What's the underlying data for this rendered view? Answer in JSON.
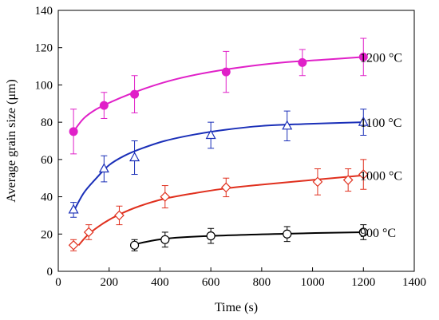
{
  "chart_data": {
    "type": "scatter",
    "xlabel": "Time (s)",
    "ylabel": "Average grain size (μm)",
    "xlim": [
      0,
      1400
    ],
    "ylim": [
      0,
      140
    ],
    "xticks": [
      0,
      200,
      400,
      600,
      800,
      1000,
      1200,
      1400
    ],
    "yticks": [
      0,
      20,
      40,
      60,
      80,
      100,
      120,
      140
    ],
    "grid": false,
    "legend": "none",
    "series": [
      {
        "name": "900 °C",
        "color": "#000000",
        "marker": "circle-open",
        "x": [
          300,
          420,
          600,
          900,
          1200
        ],
        "y": [
          14,
          17,
          19,
          20,
          21
        ],
        "err": [
          3,
          4,
          4,
          4,
          4
        ],
        "fit_x": [
          300,
          420,
          600,
          900,
          1200
        ],
        "fit_y": [
          14.5,
          17.5,
          19,
          20.2,
          21
        ]
      },
      {
        "name": "1000 °C",
        "color": "#e0301e",
        "marker": "diamond-open",
        "x": [
          60,
          120,
          240,
          420,
          660,
          1020,
          1140,
          1200
        ],
        "y": [
          14,
          21,
          30,
          40,
          45,
          48,
          49,
          52
        ],
        "err": [
          3,
          4,
          5,
          6,
          5,
          7,
          6,
          8
        ],
        "fit_x": [
          80,
          120,
          180,
          240,
          320,
          420,
          540,
          660,
          800,
          1000,
          1200
        ],
        "fit_y": [
          14,
          20,
          26,
          30.5,
          35,
          39,
          42,
          44.5,
          46.5,
          49,
          51.5
        ]
      },
      {
        "name": "1100 °C",
        "color": "#1a2fb8",
        "marker": "triangle-open",
        "x": [
          60,
          180,
          300,
          600,
          900,
          1200
        ],
        "y": [
          33,
          55,
          61,
          73,
          78,
          80
        ],
        "err": [
          4,
          7,
          9,
          7,
          8,
          7
        ],
        "fit_x": [
          60,
          100,
          150,
          200,
          260,
          330,
          420,
          540,
          660,
          800,
          960,
          1200
        ],
        "fit_y": [
          32,
          42,
          50,
          57,
          62,
          66,
          70,
          73.5,
          76,
          78,
          79,
          80
        ]
      },
      {
        "name": "1200 °C",
        "color": "#e020c8",
        "marker": "circle-filled",
        "x": [
          60,
          180,
          300,
          660,
          960,
          1200
        ],
        "y": [
          75,
          89,
          95,
          107,
          112,
          115
        ],
        "err": [
          12,
          7,
          10,
          11,
          7,
          10
        ],
        "fit_x": [
          60,
          100,
          150,
          210,
          280,
          360,
          460,
          580,
          720,
          880,
          1040,
          1200
        ],
        "fit_y": [
          75,
          82,
          87,
          91,
          95,
          99,
          103,
          106.5,
          109.5,
          112,
          113.5,
          115
        ]
      }
    ]
  }
}
